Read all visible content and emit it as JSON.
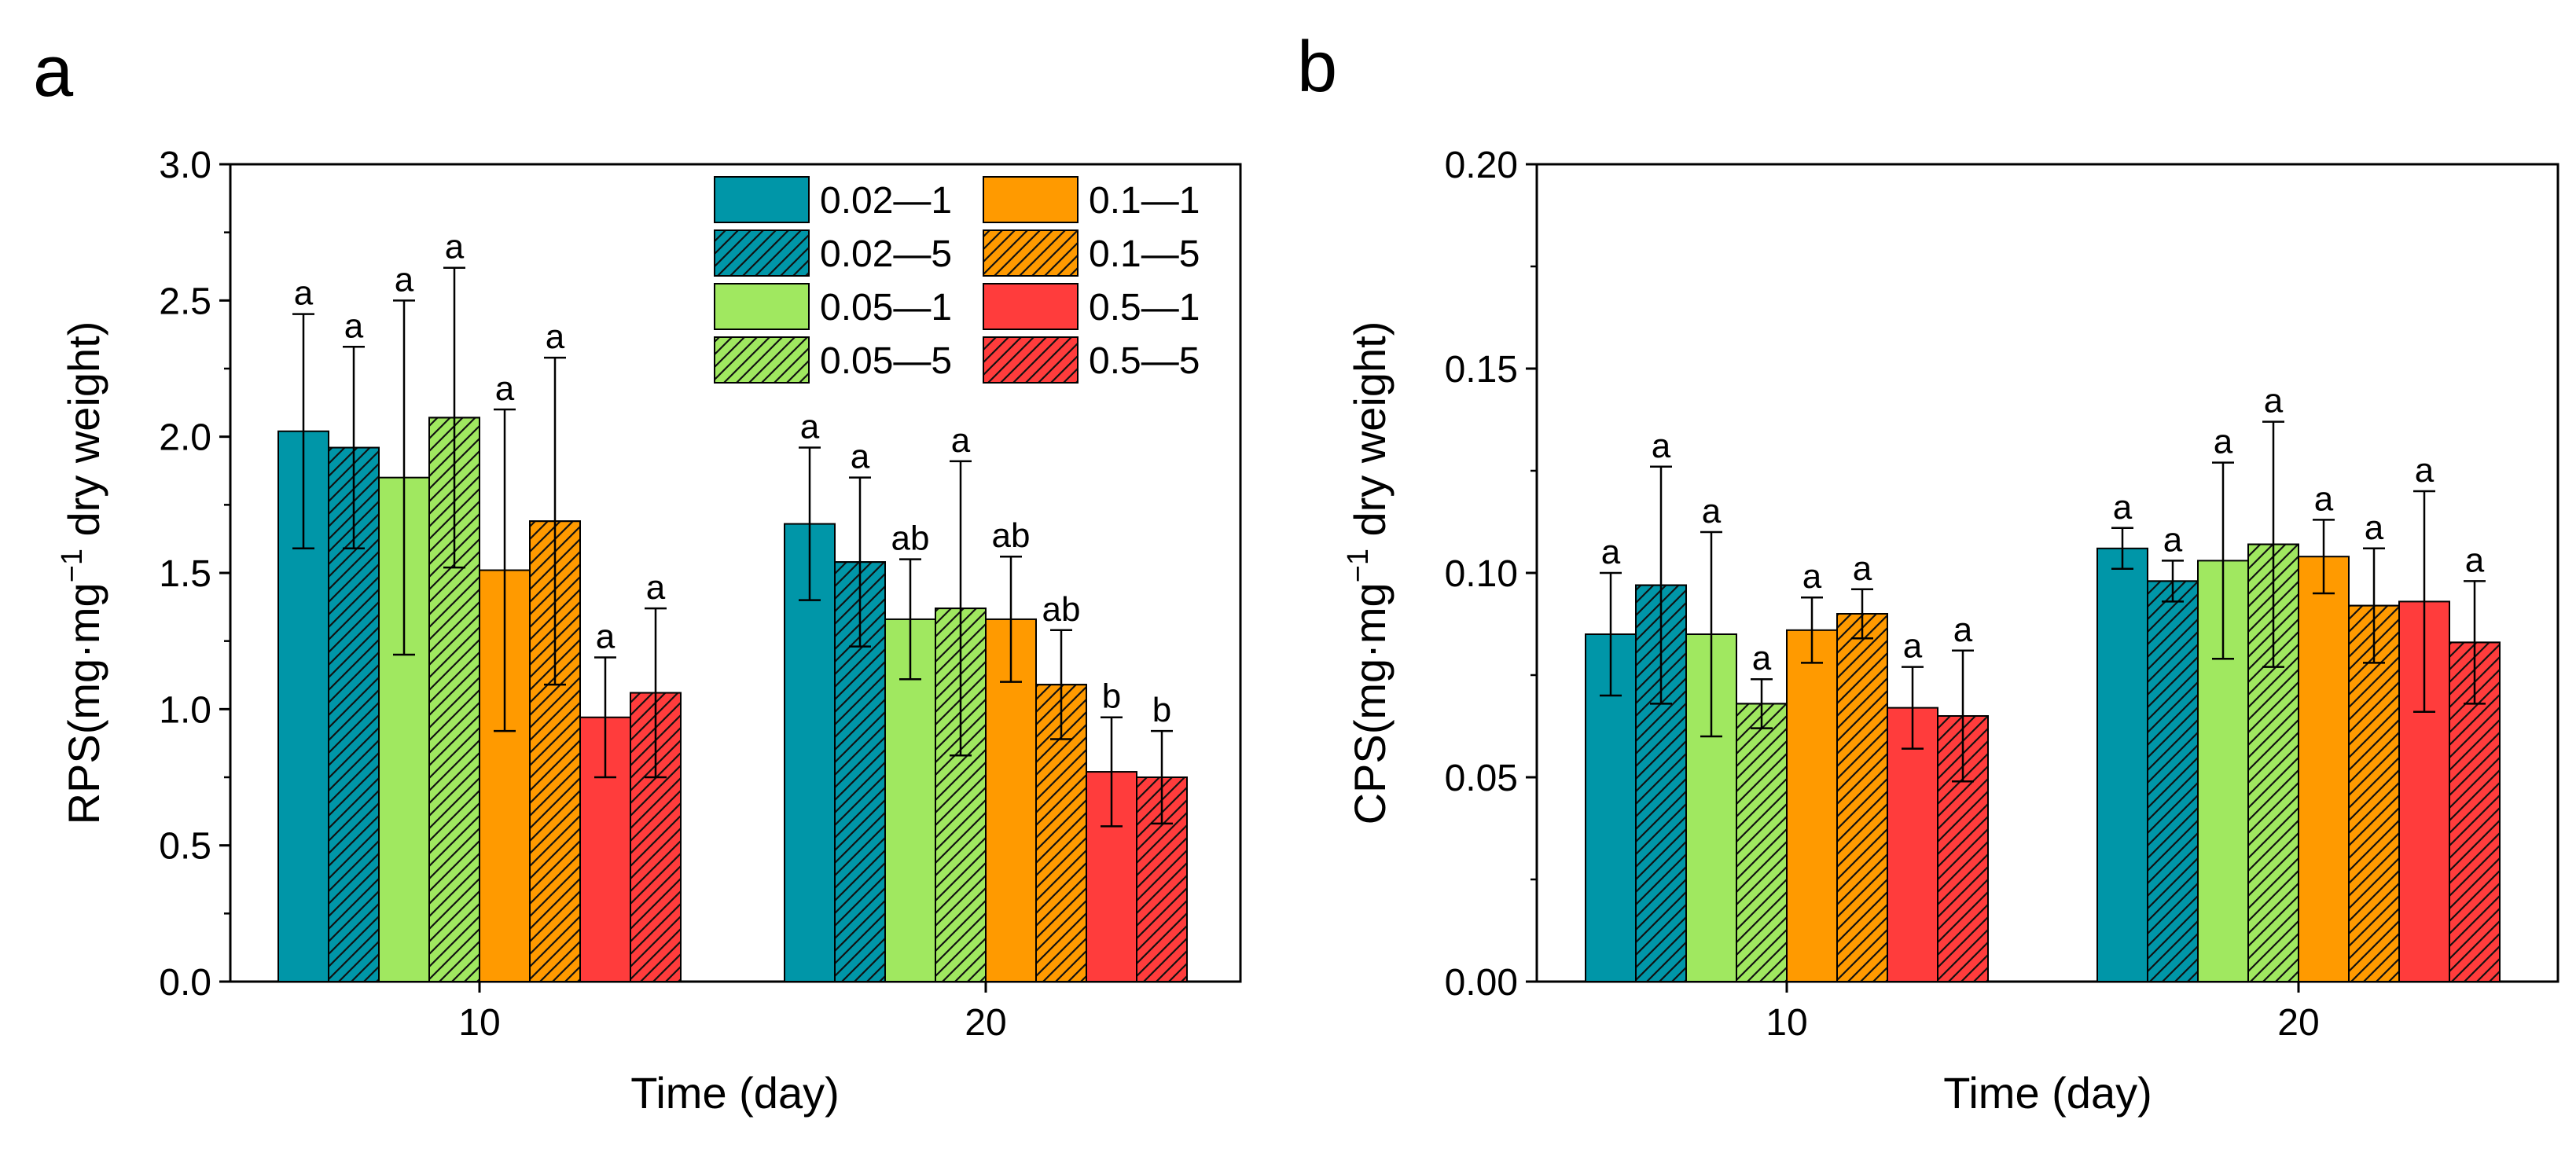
{
  "legend": [
    {
      "label": "0.02—1",
      "color": "#0096a8",
      "hatch": false
    },
    {
      "label": "0.02—5",
      "color": "#0096a8",
      "hatch": true
    },
    {
      "label": "0.05—1",
      "color": "#a0e860",
      "hatch": false
    },
    {
      "label": "0.05—5",
      "color": "#a0e860",
      "hatch": true
    },
    {
      "label": "0.1—1",
      "color": "#ff9a00",
      "hatch": false
    },
    {
      "label": "0.1—5",
      "color": "#ff9a00",
      "hatch": true
    },
    {
      "label": "0.5—1",
      "color": "#ff3c3c",
      "hatch": false
    },
    {
      "label": "0.5—5",
      "color": "#ff3c3c",
      "hatch": true
    }
  ],
  "chart_data": [
    {
      "panel": "a",
      "type": "bar",
      "xlabel": "Time (day)",
      "ylabel_main": "RPS(mg·mg",
      "ylabel_sup": "−1",
      "ylabel_tail": " dry weight)",
      "categories": [
        "10",
        "20"
      ],
      "ylim": [
        0,
        3.0
      ],
      "yticks": [
        0.0,
        0.5,
        1.0,
        1.5,
        2.0,
        2.5,
        3.0
      ],
      "tick_decimals": 1,
      "legend_position": "top-right",
      "values": [
        [
          2.02,
          1.96,
          1.85,
          2.07,
          1.51,
          1.69,
          0.97,
          1.06
        ],
        [
          1.68,
          1.54,
          1.33,
          1.37,
          1.33,
          1.09,
          0.77,
          0.75
        ]
      ],
      "errors": [
        [
          0.43,
          0.37,
          0.65,
          0.55,
          0.59,
          0.6,
          0.22,
          0.31
        ],
        [
          0.28,
          0.31,
          0.22,
          0.54,
          0.23,
          0.2,
          0.2,
          0.17
        ]
      ],
      "labels": [
        [
          "a",
          "a",
          "a",
          "a",
          "a",
          "a",
          "a",
          "a"
        ],
        [
          "a",
          "a",
          "ab",
          "a",
          "ab",
          "ab",
          "b",
          "b"
        ]
      ]
    },
    {
      "panel": "b",
      "type": "bar",
      "xlabel": "Time (day)",
      "ylabel_main": "CPS(mg·mg",
      "ylabel_sup": "−1",
      "ylabel_tail": " dry weight)",
      "categories": [
        "10",
        "20"
      ],
      "ylim": [
        0,
        0.2
      ],
      "yticks": [
        0.0,
        0.05,
        0.1,
        0.15,
        0.2
      ],
      "tick_decimals": 2,
      "values": [
        [
          0.085,
          0.097,
          0.085,
          0.068,
          0.086,
          0.09,
          0.067,
          0.065
        ],
        [
          0.106,
          0.098,
          0.103,
          0.107,
          0.104,
          0.092,
          0.093,
          0.083
        ]
      ],
      "errors": [
        [
          0.015,
          0.029,
          0.025,
          0.006,
          0.008,
          0.006,
          0.01,
          0.016
        ],
        [
          0.005,
          0.005,
          0.024,
          0.03,
          0.009,
          0.014,
          0.027,
          0.015
        ]
      ],
      "labels": [
        [
          "a",
          "a",
          "a",
          "a",
          "a",
          "a",
          "a",
          "a"
        ],
        [
          "a",
          "a",
          "a",
          "a",
          "a",
          "a",
          "a",
          "a"
        ]
      ]
    }
  ]
}
